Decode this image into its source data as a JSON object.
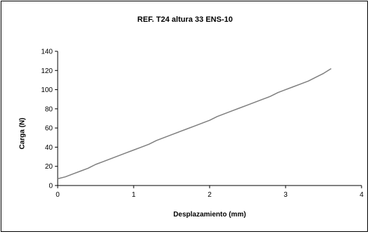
{
  "chart_data": {
    "type": "line",
    "title": "REF. T24 altura 33 ENS-10",
    "xlabel": "Desplazamiento (mm)",
    "ylabel": "Carga (N)",
    "xlim": [
      0,
      4
    ],
    "ylim": [
      0,
      140
    ],
    "xticks": [
      "0",
      "1",
      "2",
      "3",
      "4"
    ],
    "yticks": [
      "0",
      "20",
      "40",
      "60",
      "80",
      "100",
      "120",
      "140"
    ],
    "grid": false,
    "legend": "none",
    "line_color": "#7f7f7f",
    "series": [
      {
        "x": [
          0,
          0.1,
          0.2,
          0.3,
          0.4,
          0.5,
          0.6,
          0.7,
          0.8,
          0.9,
          1.0,
          1.1,
          1.2,
          1.3,
          1.4,
          1.5,
          1.6,
          1.7,
          1.8,
          1.9,
          2.0,
          2.1,
          2.2,
          2.3,
          2.4,
          2.5,
          2.6,
          2.7,
          2.8,
          2.9,
          3.0,
          3.1,
          3.2,
          3.3,
          3.4,
          3.5,
          3.6
        ],
        "y": [
          7,
          9,
          12,
          15,
          18,
          22,
          25,
          28,
          31,
          34,
          37,
          40,
          43,
          47,
          50,
          53,
          56,
          59,
          62,
          65,
          68,
          72,
          75,
          78,
          81,
          84,
          87,
          90,
          93,
          97,
          100,
          103,
          106,
          109,
          113,
          117,
          122
        ]
      }
    ]
  }
}
